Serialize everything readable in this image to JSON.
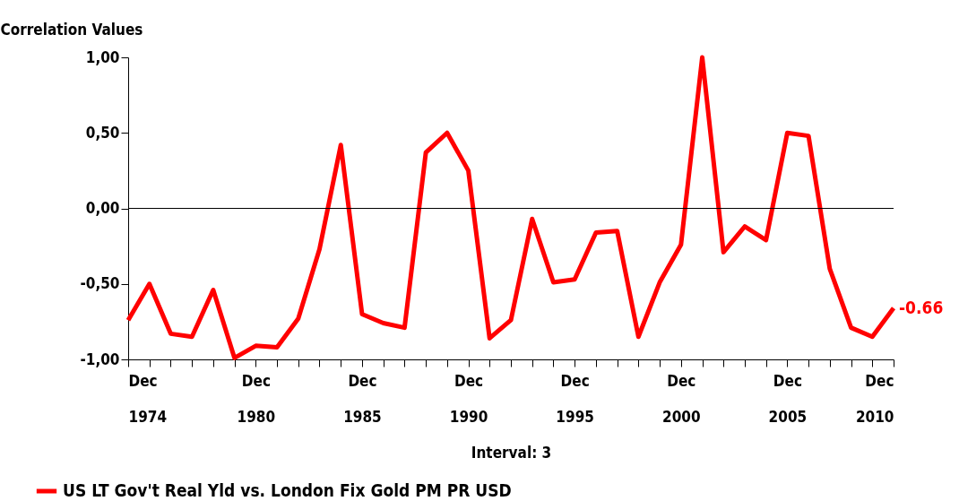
{
  "chart_data": {
    "type": "line",
    "ylabel": "Correlation Values",
    "xlabel": "Interval: 3",
    "x": [
      "1974-12",
      "1975-12",
      "1976-12",
      "1977-12",
      "1978-12",
      "1979-12",
      "1980-12",
      "1981-12",
      "1982-12",
      "1983-12",
      "1984-12",
      "1985-12",
      "1986-12",
      "1987-12",
      "1988-12",
      "1989-12",
      "1990-12",
      "1991-12",
      "1992-12",
      "1993-12",
      "1994-12",
      "1995-12",
      "1996-12",
      "1997-12",
      "1998-12",
      "1999-12",
      "2000-12",
      "2001-12",
      "2002-12",
      "2003-12",
      "2004-12",
      "2005-12",
      "2006-12",
      "2007-12",
      "2008-12",
      "2009-12",
      "2010-12"
    ],
    "series": [
      {
        "name": "US LT Gov't Real Yld vs. London Fix Gold PM PR USD",
        "color": "#ff0000",
        "values": [
          -0.74,
          -0.5,
          -0.83,
          -0.85,
          -0.54,
          -0.99,
          -0.91,
          -0.92,
          -0.73,
          -0.27,
          0.42,
          -0.7,
          -0.76,
          -0.79,
          0.37,
          0.5,
          0.25,
          -0.86,
          -0.74,
          -0.07,
          -0.49,
          -0.47,
          -0.16,
          -0.15,
          -0.85,
          -0.49,
          -0.24,
          1.0,
          -0.29,
          -0.12,
          -0.21,
          0.5,
          0.48,
          -0.4,
          -0.79,
          -0.85,
          -0.66
        ]
      }
    ],
    "xlim": [
      "1974-12",
      "2010-12"
    ],
    "xticks": [
      {
        "value": "1974-12",
        "label": "Dec 1974"
      },
      {
        "value": "1975-12",
        "label": null
      },
      {
        "value": "1976-12",
        "label": null
      },
      {
        "value": "1977-12",
        "label": null
      },
      {
        "value": "1978-12",
        "label": null
      },
      {
        "value": "1979-12",
        "label": null
      },
      {
        "value": "1980-12",
        "label": "Dec 1980"
      },
      {
        "value": "1981-12",
        "label": null
      },
      {
        "value": "1982-12",
        "label": null
      },
      {
        "value": "1983-12",
        "label": null
      },
      {
        "value": "1984-12",
        "label": null
      },
      {
        "value": "1985-12",
        "label": "Dec 1985"
      },
      {
        "value": "1986-12",
        "label": null
      },
      {
        "value": "1987-12",
        "label": null
      },
      {
        "value": "1988-12",
        "label": null
      },
      {
        "value": "1989-12",
        "label": null
      },
      {
        "value": "1990-12",
        "label": "Dec 1990"
      },
      {
        "value": "1991-12",
        "label": null
      },
      {
        "value": "1992-12",
        "label": null
      },
      {
        "value": "1993-12",
        "label": null
      },
      {
        "value": "1994-12",
        "label": null
      },
      {
        "value": "1995-12",
        "label": "Dec 1995"
      },
      {
        "value": "1996-12",
        "label": null
      },
      {
        "value": "1997-12",
        "label": null
      },
      {
        "value": "1998-12",
        "label": null
      },
      {
        "value": "1999-12",
        "label": null
      },
      {
        "value": "2000-12",
        "label": "Dec 2000"
      },
      {
        "value": "2001-12",
        "label": null
      },
      {
        "value": "2002-12",
        "label": null
      },
      {
        "value": "2003-12",
        "label": null
      },
      {
        "value": "2004-12",
        "label": null
      },
      {
        "value": "2005-12",
        "label": "Dec 2005"
      },
      {
        "value": "2006-12",
        "label": null
      },
      {
        "value": "2007-12",
        "label": null
      },
      {
        "value": "2008-12",
        "label": null
      },
      {
        "value": "2009-12",
        "label": null
      },
      {
        "value": "2010-12",
        "label": "Dec 2010"
      }
    ],
    "ylim": [
      -1,
      1
    ],
    "yticks": [
      {
        "value": -1,
        "label": "-1,00"
      },
      {
        "value": -0.5,
        "label": "-0,50"
      },
      {
        "value": 0,
        "label": "0,00"
      },
      {
        "value": 0.5,
        "label": "0,50"
      },
      {
        "value": 1,
        "label": "1,00"
      }
    ],
    "ref_lines": [
      {
        "axis": "y",
        "value": 0,
        "color": "#000000"
      }
    ],
    "annotations": [
      {
        "text": "-0.66",
        "x": "2010-12",
        "y": -0.66
      }
    ],
    "legend": "bottom left",
    "grid": false,
    "marker": "none",
    "line_style": "solid"
  }
}
